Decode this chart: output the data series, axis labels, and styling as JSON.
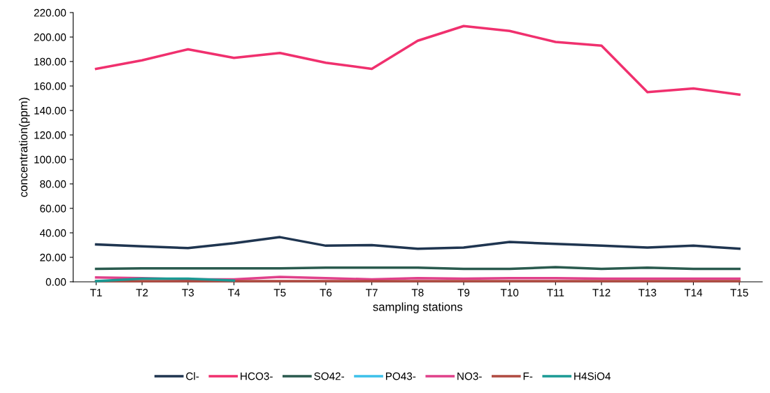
{
  "chart_data": {
    "type": "line",
    "xlabel": "sampling stations",
    "ylabel": "concentration(ppm)",
    "categories": [
      "T1",
      "T2",
      "T3",
      "T4",
      "T5",
      "T6",
      "T7",
      "T8",
      "T9",
      "T10",
      "T11",
      "T12",
      "T13",
      "T14",
      "T15"
    ],
    "ylim": [
      0,
      220
    ],
    "yticks": [
      {
        "value": 0,
        "label": "0.00"
      },
      {
        "value": 20,
        "label": "20.00"
      },
      {
        "value": 40,
        "label": "40.00"
      },
      {
        "value": 60,
        "label": "60.00"
      },
      {
        "value": 80,
        "label": "80.00"
      },
      {
        "value": 100,
        "label": "100.00"
      },
      {
        "value": 120,
        "label": "120.00"
      },
      {
        "value": 140,
        "label": "140.00"
      },
      {
        "value": 160,
        "label": "160.00"
      },
      {
        "value": 180,
        "label": "180.00"
      },
      {
        "value": 200,
        "label": "200.00"
      },
      {
        "value": 220,
        "label": "220.00"
      }
    ],
    "grid": false,
    "legend": "bottom",
    "marker": "none",
    "line_style": "solid",
    "series": [
      {
        "name": "Cl-",
        "color": "#1f3550",
        "values": [
          30.5,
          29,
          27.5,
          31.5,
          36.5,
          29.5,
          30,
          27,
          28,
          32.5,
          31,
          29.5,
          28,
          29.5,
          27
        ]
      },
      {
        "name": "HCO3-",
        "color": "#f0306e",
        "values": [
          174,
          181,
          190,
          183,
          187,
          179,
          174,
          197,
          209,
          205,
          196,
          193,
          155,
          158,
          153
        ]
      },
      {
        "name": "SO42-",
        "color": "#2a5a4e",
        "values": [
          10.5,
          11,
          11,
          11,
          11,
          11.5,
          11.5,
          11.5,
          10.5,
          10.5,
          12,
          10.5,
          11.5,
          10.5,
          10.5
        ]
      },
      {
        "name": "PO43-",
        "color": "#3cc0ea",
        "values": [
          null,
          null,
          null,
          null,
          null,
          null,
          null,
          null,
          null,
          null,
          null,
          null,
          null,
          null,
          null
        ]
      },
      {
        "name": "NO3-",
        "color": "#e0408a",
        "values": [
          3.5,
          3,
          2,
          2,
          4,
          3,
          2,
          3,
          2.5,
          3,
          3,
          2.5,
          2.5,
          2.5,
          2.5
        ]
      },
      {
        "name": "F-",
        "color": "#b04a40",
        "values": [
          0.5,
          0.5,
          0.5,
          0.5,
          0.5,
          0.5,
          0.5,
          0.5,
          0.5,
          0.5,
          0.5,
          0.5,
          0.5,
          0.5,
          0.5
        ]
      },
      {
        "name": "H4SiO4",
        "color": "#1a9a94",
        "values": [
          0.5,
          2.5,
          2.5,
          1,
          null,
          null,
          null,
          null,
          null,
          null,
          null,
          null,
          null,
          null,
          null
        ]
      }
    ]
  }
}
